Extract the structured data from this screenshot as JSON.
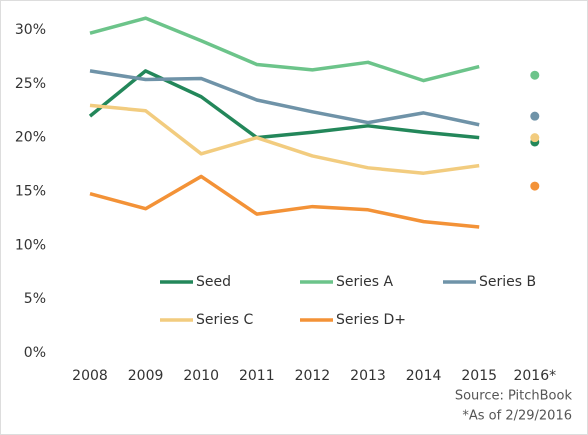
{
  "chart_data": {
    "type": "line",
    "categories": [
      "2008",
      "2009",
      "2010",
      "2011",
      "2012",
      "2013",
      "2014",
      "2015",
      "2016*"
    ],
    "series": [
      {
        "name": "Seed",
        "color": "#23875a",
        "values": [
          22.0,
          26.2,
          23.8,
          20.0,
          20.5,
          21.1,
          20.5,
          20.0,
          19.6
        ]
      },
      {
        "name": "Series A",
        "color": "#6cc48a",
        "values": [
          29.7,
          31.1,
          29.0,
          26.8,
          26.3,
          27.0,
          25.3,
          26.6,
          25.8
        ]
      },
      {
        "name": "Series B",
        "color": "#6f93a8",
        "values": [
          26.2,
          25.4,
          25.5,
          23.5,
          22.4,
          21.4,
          22.3,
          21.2,
          22.0
        ]
      },
      {
        "name": "Series C",
        "color": "#f2cc7f",
        "values": [
          23.0,
          22.5,
          18.5,
          20.0,
          18.3,
          17.2,
          16.7,
          17.4,
          20.0
        ]
      },
      {
        "name": "Series D+",
        "color": "#f39237",
        "values": [
          14.8,
          13.4,
          16.4,
          12.9,
          13.6,
          13.3,
          12.2,
          11.7,
          15.5
        ]
      }
    ],
    "last_point_marker_only": true,
    "ylim": [
      0,
      30
    ],
    "yticks": [
      {
        "value": 0,
        "label": "0%"
      },
      {
        "value": 5,
        "label": "5%"
      },
      {
        "value": 10,
        "label": "10%"
      },
      {
        "value": 15,
        "label": "15%"
      },
      {
        "value": 20,
        "label": "20%"
      },
      {
        "value": 25,
        "label": "25%"
      },
      {
        "value": 30,
        "label": "30%"
      }
    ],
    "source": "Source: PitchBook",
    "note": "*As of 2/29/2016"
  }
}
